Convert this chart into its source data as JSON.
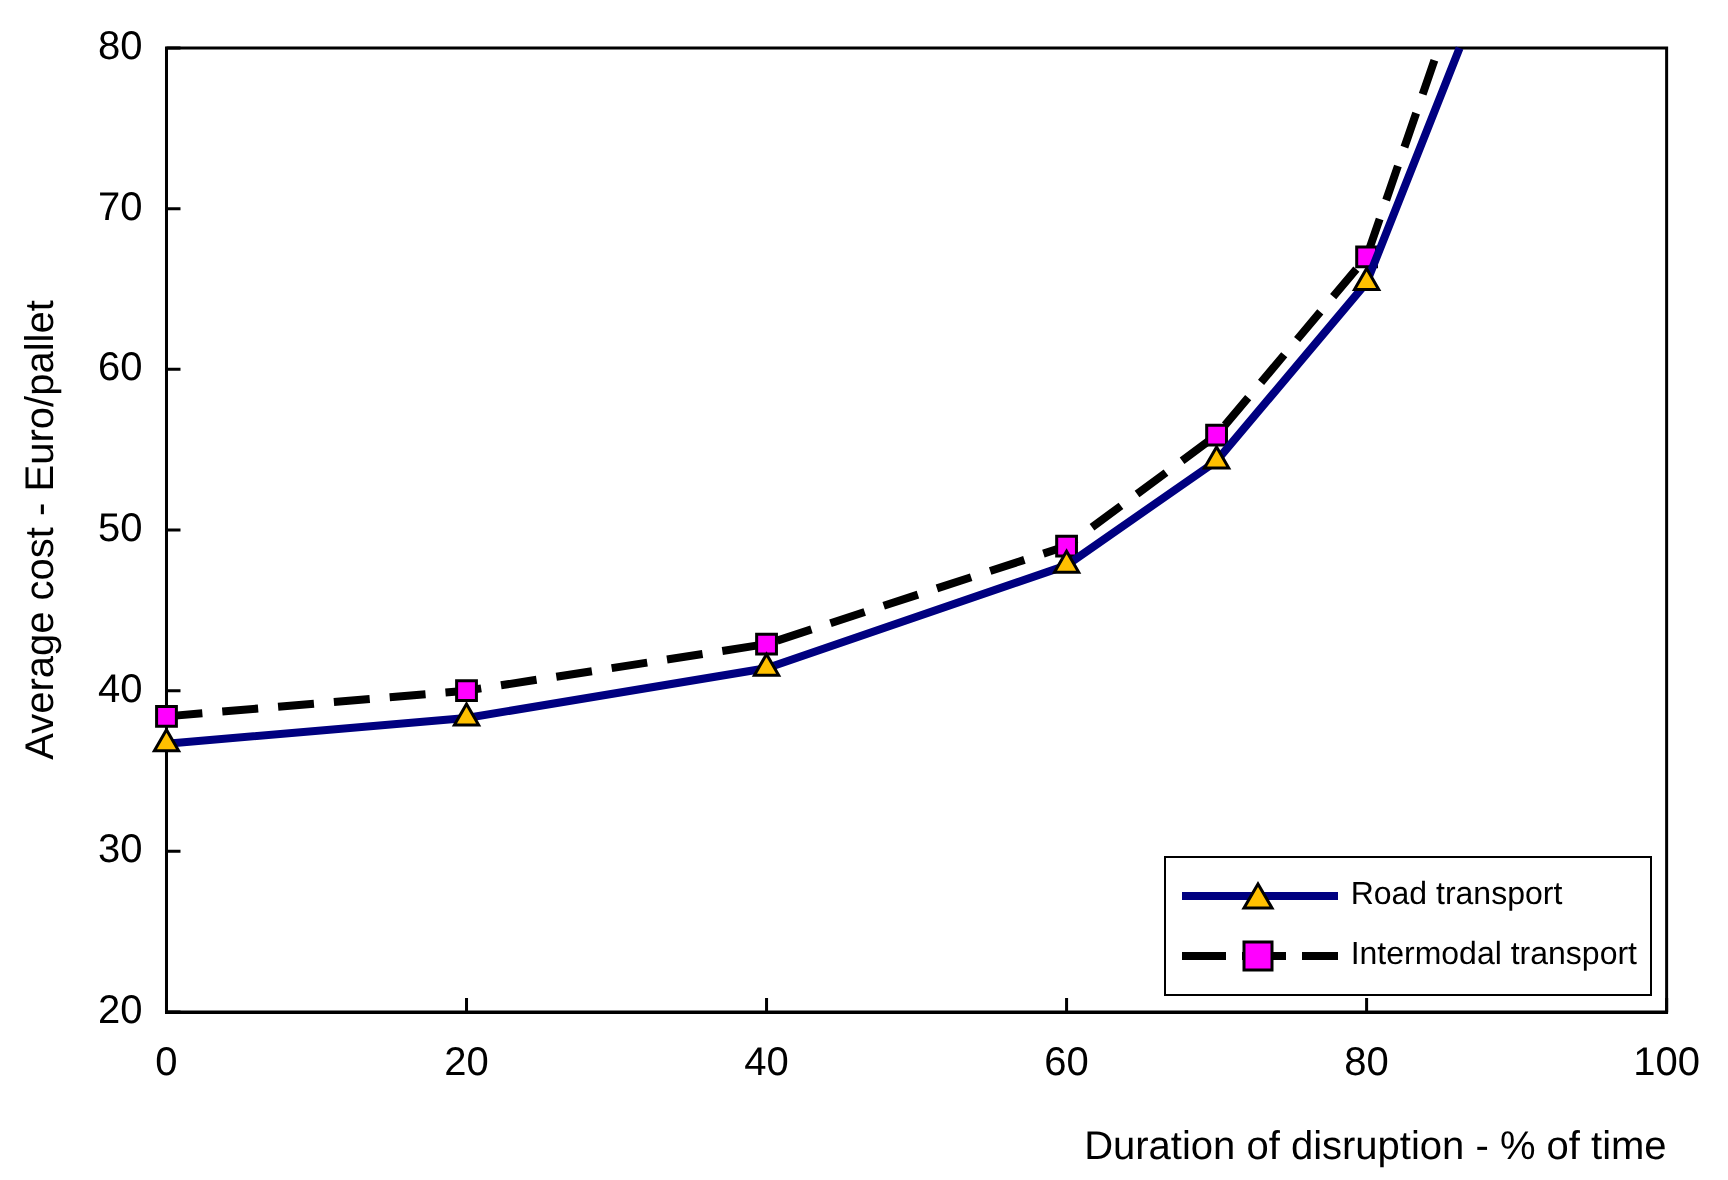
{
  "chart_data": {
    "type": "line",
    "xlabel": "Duration of disruption - % of time",
    "ylabel": "Average cost - Euro/pallet",
    "xlim": [
      0,
      100
    ],
    "xticks": [
      0,
      20,
      40,
      60,
      80,
      100
    ],
    "ylim": [
      20,
      80
    ],
    "yticks": [
      20,
      30,
      40,
      50,
      60,
      70,
      80
    ],
    "grid": false,
    "legend": "bottom right",
    "series": [
      {
        "name": "Road transport",
        "color": "#000080",
        "marker": "triangle",
        "colors": [
          "#ffc000",
          "#ffc000",
          "#ffc000",
          "#ffc000",
          "#ffc000",
          "#ffc000",
          "#ffc000"
        ],
        "line_style": "solid",
        "x": [
          0,
          20,
          40,
          60,
          70,
          80,
          86.2
        ],
        "values": [
          36.7,
          38.3,
          41.4,
          47.8,
          54.3,
          65.4,
          80
        ]
      },
      {
        "name": "Intermodal transport",
        "color": "#000000",
        "marker": "square",
        "colors": [
          "#ff00ff",
          "#ff00ff",
          "#ff00ff",
          "#ff00ff",
          "#ff00ff",
          "#ff00ff",
          "#ff00ff"
        ],
        "line_style": "dashed",
        "x": [
          0,
          20,
          40,
          60,
          70,
          80,
          84.8
        ],
        "values": [
          38.4,
          40.0,
          42.9,
          49.0,
          55.9,
          67.0,
          80
        ]
      }
    ]
  }
}
